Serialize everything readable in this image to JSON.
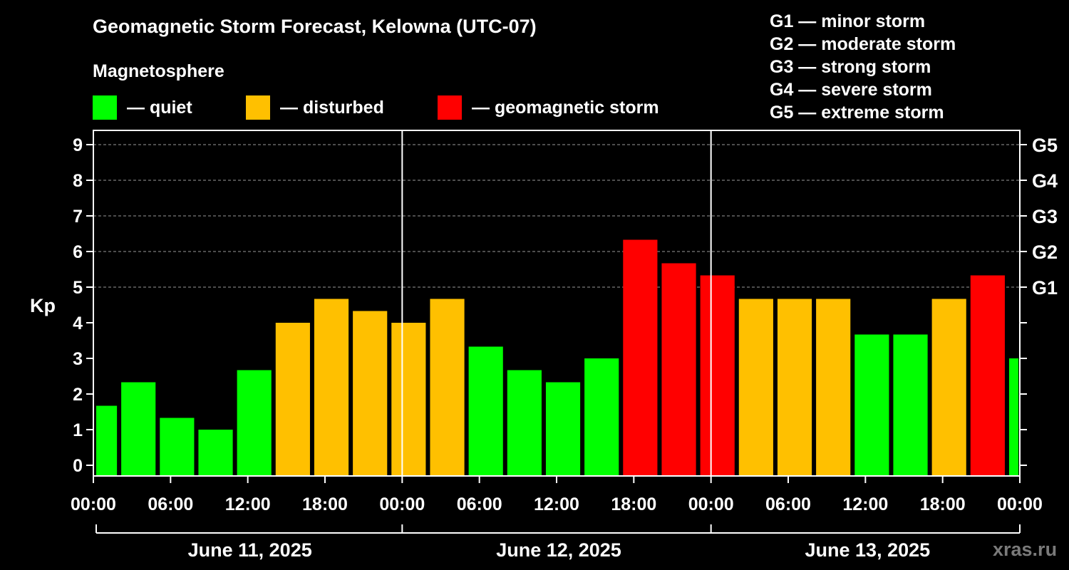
{
  "title": "Geomagnetic Storm Forecast, Kelowna (UTC-07)",
  "magnetosphere_label": "Magnetosphere",
  "legend": [
    {
      "label": "— quiet",
      "color": "#00ff00"
    },
    {
      "label": "— disturbed",
      "color": "#ffc000"
    },
    {
      "label": "— geomagnetic storm",
      "color": "#ff0000"
    }
  ],
  "g_scale": [
    "G1 — minor storm",
    "G2 — moderate storm",
    "G3 — strong storm",
    "G4 — severe storm",
    "G5 — extreme storm"
  ],
  "credit": "xras.ru",
  "chart_data": {
    "type": "bar",
    "ylabel": "Kp",
    "ylim": [
      -0.3,
      9.4
    ],
    "y_ticks": [
      0,
      1,
      2,
      3,
      4,
      5,
      6,
      7,
      8,
      9
    ],
    "right_ticks": [
      {
        "label": "G1",
        "value": 5
      },
      {
        "label": "G2",
        "value": 6
      },
      {
        "label": "G3",
        "value": 7
      },
      {
        "label": "G4",
        "value": 8
      },
      {
        "label": "G5",
        "value": 9
      }
    ],
    "x_range_hours": [
      0,
      72
    ],
    "x_tick_labels": [
      "00:00",
      "06:00",
      "12:00",
      "18:00",
      "00:00",
      "06:00",
      "12:00",
      "18:00",
      "00:00",
      "06:00",
      "12:00",
      "18:00",
      "00:00"
    ],
    "days": [
      "June 11, 2025",
      "June 12, 2025",
      "June 13, 2025"
    ],
    "grid": true,
    "colors": {
      "quiet": "#00ff00",
      "disturbed": "#ffc000",
      "storm": "#ff0000"
    },
    "bars": [
      {
        "start_hour": 0,
        "kp": 1.67,
        "level": "quiet"
      },
      {
        "start_hour": 2,
        "kp": 2.33,
        "level": "quiet"
      },
      {
        "start_hour": 5,
        "kp": 1.33,
        "level": "quiet"
      },
      {
        "start_hour": 8,
        "kp": 1.0,
        "level": "quiet"
      },
      {
        "start_hour": 11,
        "kp": 2.67,
        "level": "quiet"
      },
      {
        "start_hour": 14,
        "kp": 4.0,
        "level": "disturbed"
      },
      {
        "start_hour": 17,
        "kp": 4.67,
        "level": "disturbed"
      },
      {
        "start_hour": 20,
        "kp": 4.33,
        "level": "disturbed"
      },
      {
        "start_hour": 23,
        "kp": 4.0,
        "level": "disturbed"
      },
      {
        "start_hour": 26,
        "kp": 4.67,
        "level": "disturbed"
      },
      {
        "start_hour": 29,
        "kp": 3.33,
        "level": "quiet"
      },
      {
        "start_hour": 32,
        "kp": 2.67,
        "level": "quiet"
      },
      {
        "start_hour": 35,
        "kp": 2.33,
        "level": "quiet"
      },
      {
        "start_hour": 38,
        "kp": 3.0,
        "level": "quiet"
      },
      {
        "start_hour": 41,
        "kp": 6.33,
        "level": "storm"
      },
      {
        "start_hour": 44,
        "kp": 5.67,
        "level": "storm"
      },
      {
        "start_hour": 47,
        "kp": 5.33,
        "level": "storm"
      },
      {
        "start_hour": 50,
        "kp": 4.67,
        "level": "disturbed"
      },
      {
        "start_hour": 53,
        "kp": 4.67,
        "level": "disturbed"
      },
      {
        "start_hour": 56,
        "kp": 4.67,
        "level": "disturbed"
      },
      {
        "start_hour": 59,
        "kp": 3.67,
        "level": "quiet"
      },
      {
        "start_hour": 62,
        "kp": 3.67,
        "level": "quiet"
      },
      {
        "start_hour": 65,
        "kp": 4.67,
        "level": "disturbed"
      },
      {
        "start_hour": 68,
        "kp": 5.33,
        "level": "storm"
      },
      {
        "start_hour": 71,
        "kp": 3.0,
        "level": "quiet"
      }
    ]
  }
}
